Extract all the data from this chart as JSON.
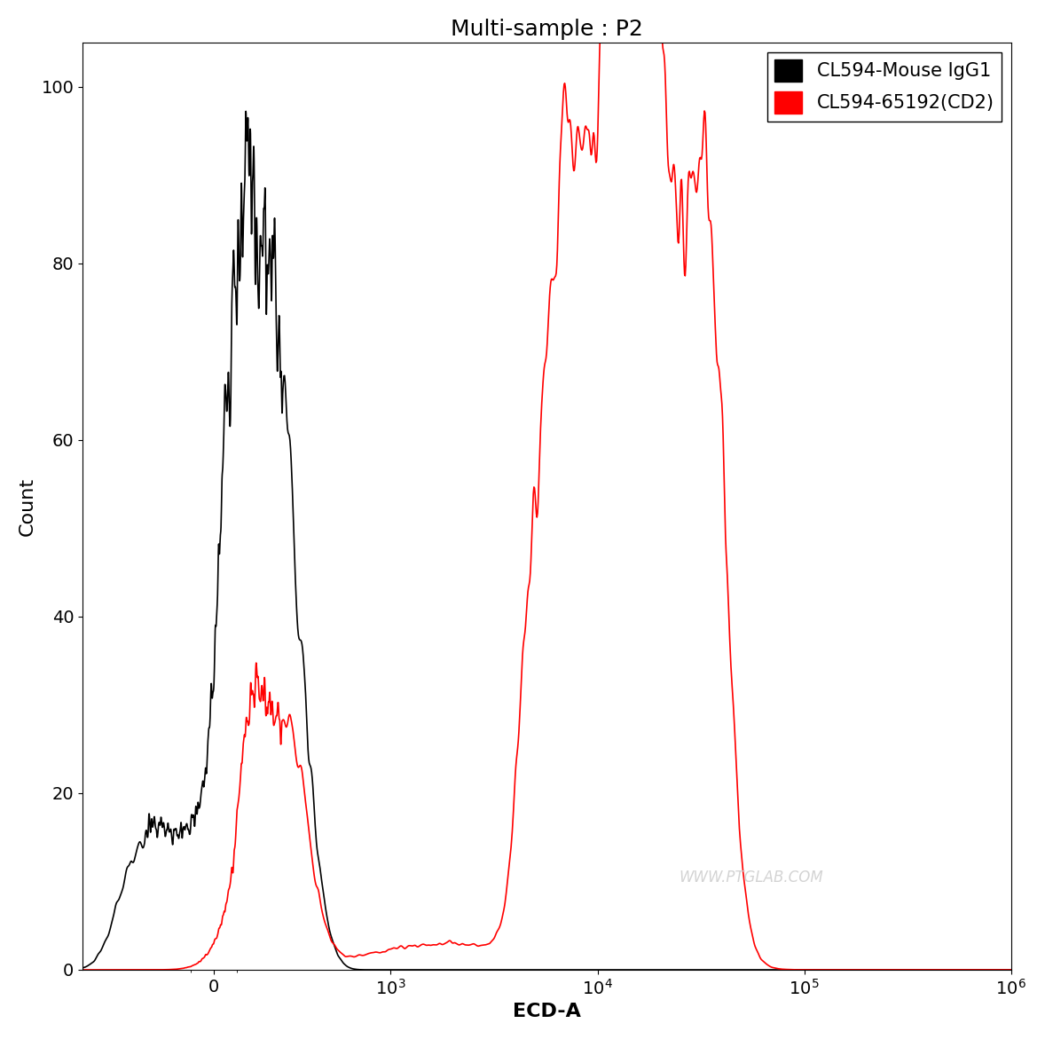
{
  "title": "Multi-sample : P2",
  "xlabel": "ECD-A",
  "ylabel": "Count",
  "ylim": [
    0,
    105
  ],
  "yticks": [
    0,
    20,
    40,
    60,
    80,
    100
  ],
  "legend_labels": [
    "CL594-Mouse IgG1",
    "CL594-65192(CD2)"
  ],
  "legend_colors": [
    "#000000",
    "#ff0000"
  ],
  "watermark": "WWW.PTGLAB.COM",
  "title_fontsize": 18,
  "axis_fontsize": 16,
  "tick_fontsize": 14,
  "legend_fontsize": 15,
  "linthresh": 300,
  "linscale": 0.3,
  "xmin": -600,
  "xmax": 1000000,
  "seed_black": 10,
  "seed_red": 20
}
